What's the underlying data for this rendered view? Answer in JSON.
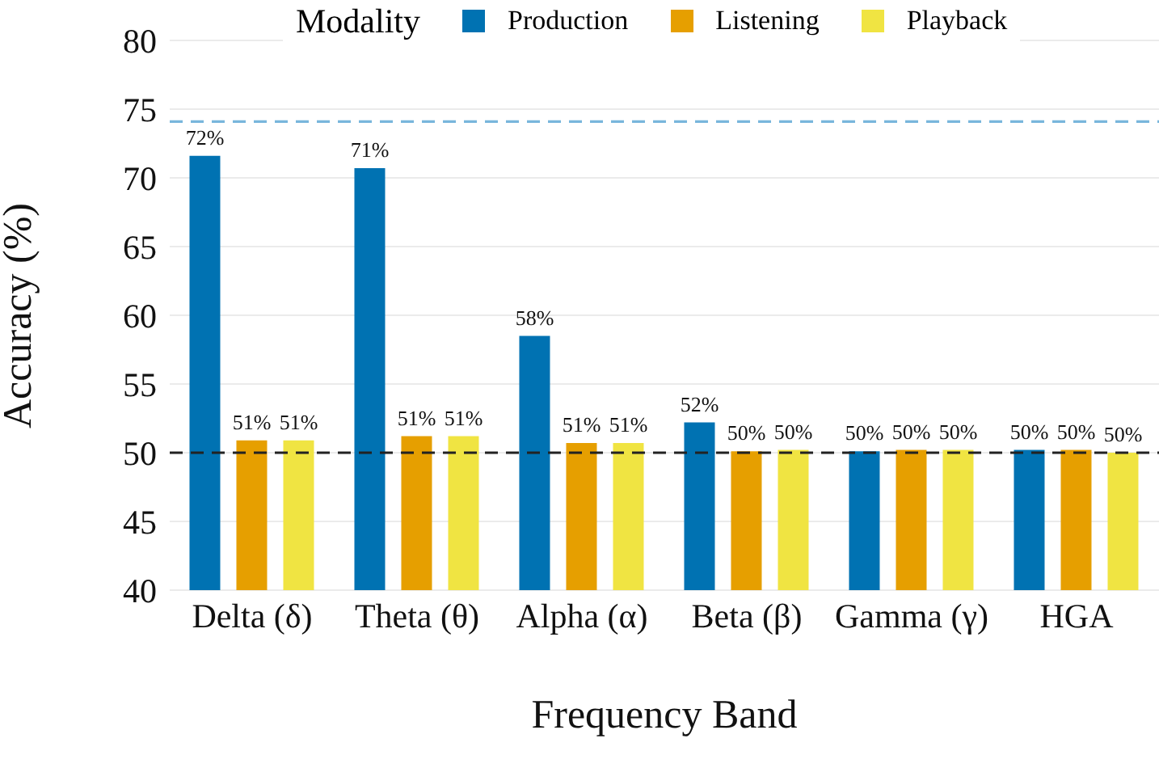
{
  "chart_data": {
    "type": "bar",
    "xlabel": "Frequency Band",
    "ylabel": "Accuracy (%)",
    "legend_title": "Modality",
    "legend": "top",
    "grid": "y",
    "categories": [
      "Delta (δ)",
      "Theta (θ)",
      "Alpha (α)",
      "Beta (β)",
      "Gamma (γ)",
      "HGA"
    ],
    "series": [
      {
        "name": "Production",
        "color": "#0072b2",
        "values": [
          71.6,
          70.7,
          58.5,
          52.2,
          50.1,
          50.2
        ],
        "value_labels": [
          "72%",
          "71%",
          "58%",
          "52%",
          "50%",
          "50%"
        ]
      },
      {
        "name": "Listening",
        "color": "#e69f00",
        "values": [
          50.9,
          51.2,
          50.7,
          50.1,
          50.2,
          50.2
        ],
        "value_labels": [
          "51%",
          "51%",
          "51%",
          "50%",
          "50%",
          "50%"
        ]
      },
      {
        "name": "Playback",
        "color": "#f0e442",
        "values": [
          50.9,
          51.2,
          50.7,
          50.2,
          50.2,
          50.0
        ],
        "value_labels": [
          "51%",
          "51%",
          "51%",
          "50%",
          "50%",
          "50%"
        ]
      }
    ],
    "ylim": [
      40,
      80
    ],
    "yticks": [
      40,
      45,
      50,
      55,
      60,
      65,
      70,
      75,
      80
    ],
    "ref_lines": [
      {
        "axis": "y",
        "value": 74.1,
        "color": "#79b6dc",
        "line_style": "dashed"
      },
      {
        "axis": "y",
        "value": 50,
        "color": "#222222",
        "line_style": "dashed"
      }
    ]
  }
}
